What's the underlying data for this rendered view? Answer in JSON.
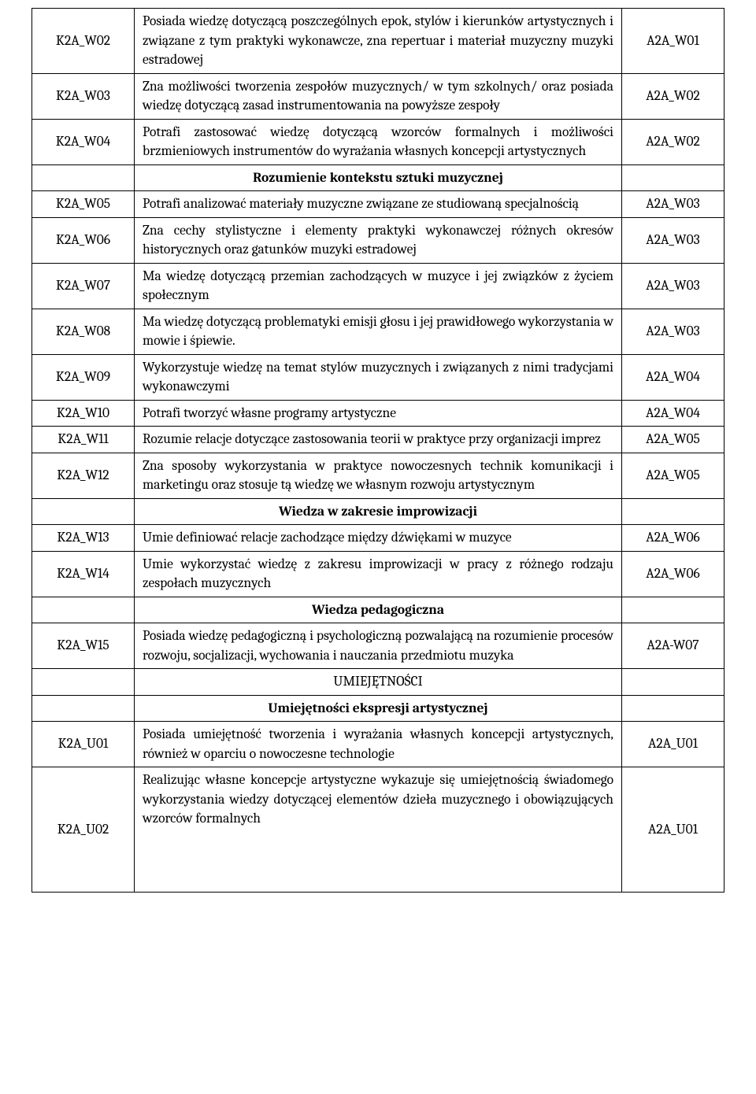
{
  "rows": [
    {
      "type": "data",
      "code": "K2A_W02",
      "desc": "Posiada wiedzę dotyczącą poszczególnych epok, stylów i kierunków artystycznych i związane z tym praktyki wykonawcze, zna repertuar i materiał muzyczny muzyki estradowej",
      "ref": "A2A_W01"
    },
    {
      "type": "data",
      "code": "K2A_W03",
      "desc": "Zna możliwości tworzenia zespołów muzycznych/ w tym szkolnych/ oraz posiada wiedzę dotyczącą zasad instrumentowania na powyższe zespoły",
      "ref": "A2A_W02"
    },
    {
      "type": "data",
      "code": "K2A_W04",
      "desc": "Potrafi zastosować wiedzę dotyczącą wzorców formalnych i możliwości brzmieniowych instrumentów do wyrażania własnych koncepcji artystycznych",
      "ref": "A2A_W02"
    },
    {
      "type": "section",
      "text": "Rozumienie kontekstu sztuki muzycznej"
    },
    {
      "type": "data",
      "code": "K2A_W05",
      "desc": "Potrafi analizować materiały muzyczne  związane ze studiowaną specjalnością",
      "ref": "A2A_W03"
    },
    {
      "type": "data",
      "code": "K2A_W06",
      "desc": "Zna cechy stylistyczne i elementy praktyki wykonawczej różnych okresów historycznych oraz gatunków muzyki estradowej",
      "ref": "A2A_W03"
    },
    {
      "type": "data",
      "code": "K2A_W07",
      "desc": "Ma wiedzę dotyczącą przemian zachodzących  w muzyce i jej związków z życiem społecznym",
      "ref": "A2A_W03"
    },
    {
      "type": "data",
      "code": "K2A_W08",
      "desc": "Ma wiedzę dotyczącą problematyki emisji głosu i jej prawidłowego wykorzystania w mowie i śpiewie.",
      "ref": "A2A_W03"
    },
    {
      "type": "data",
      "code": "K2A_W09",
      "desc": "Wykorzystuje wiedzę na temat stylów muzycznych i związanych z nimi tradycjami wykonawczymi",
      "ref": "A2A_W04"
    },
    {
      "type": "data",
      "code": "K2A_W10",
      "desc": "Potrafi tworzyć własne programy artystyczne",
      "ref": "A2A_W04"
    },
    {
      "type": "data",
      "code": "K2A_W11",
      "desc": "Rozumie relacje dotyczące zastosowania teorii w praktyce przy organizacji imprez",
      "ref": "A2A_W05"
    },
    {
      "type": "data",
      "code": "K2A_W12",
      "desc": "Zna sposoby wykorzystania w praktyce nowoczesnych technik  komunikacji i marketingu oraz stosuje tą wiedzę we własnym rozwoju artystycznym",
      "ref": "A2A_W05"
    },
    {
      "type": "section",
      "text": "Wiedza w zakresie improwizacji"
    },
    {
      "type": "data",
      "code": "K2A_W13",
      "desc": "Umie definiować relacje zachodzące między dźwiękami w muzyce",
      "ref": "A2A_W06"
    },
    {
      "type": "data",
      "code": "K2A_W14",
      "desc": "Umie wykorzystać wiedzę z zakresu improwizacji w pracy z różnego rodzaju zespołach muzycznych",
      "ref": "A2A_W06"
    },
    {
      "type": "section",
      "text": "Wiedza pedagogiczna"
    },
    {
      "type": "data",
      "code": "K2A_W15",
      "desc": "Posiada wiedzę pedagogiczną i psychologiczną pozwalającą na rozumienie procesów rozwoju, socjalizacji, wychowania i nauczania przedmiotu muzyka",
      "ref": "A2A-W07"
    },
    {
      "type": "caps",
      "text": "UMIEJĘTNOŚCI"
    },
    {
      "type": "section",
      "text": "Umiejętności ekspresji artystycznej"
    },
    {
      "type": "data",
      "code": "K2A_U01",
      "desc": "Posiada umiejętność tworzenia i wyrażania własnych koncepcji artystycznych, również w oparciu o nowoczesne technologie",
      "ref": "A2A_U01"
    },
    {
      "type": "data",
      "code": "K2A_U02",
      "desc": "Realizując własne koncepcje artystyczne wykazuje się umiejętnością świadomego wykorzystania wiedzy dotyczącej elementów dzieła muzycznego i obowiązujących wzorców formalnych",
      "ref": "A2A_U01",
      "tall": true
    }
  ]
}
